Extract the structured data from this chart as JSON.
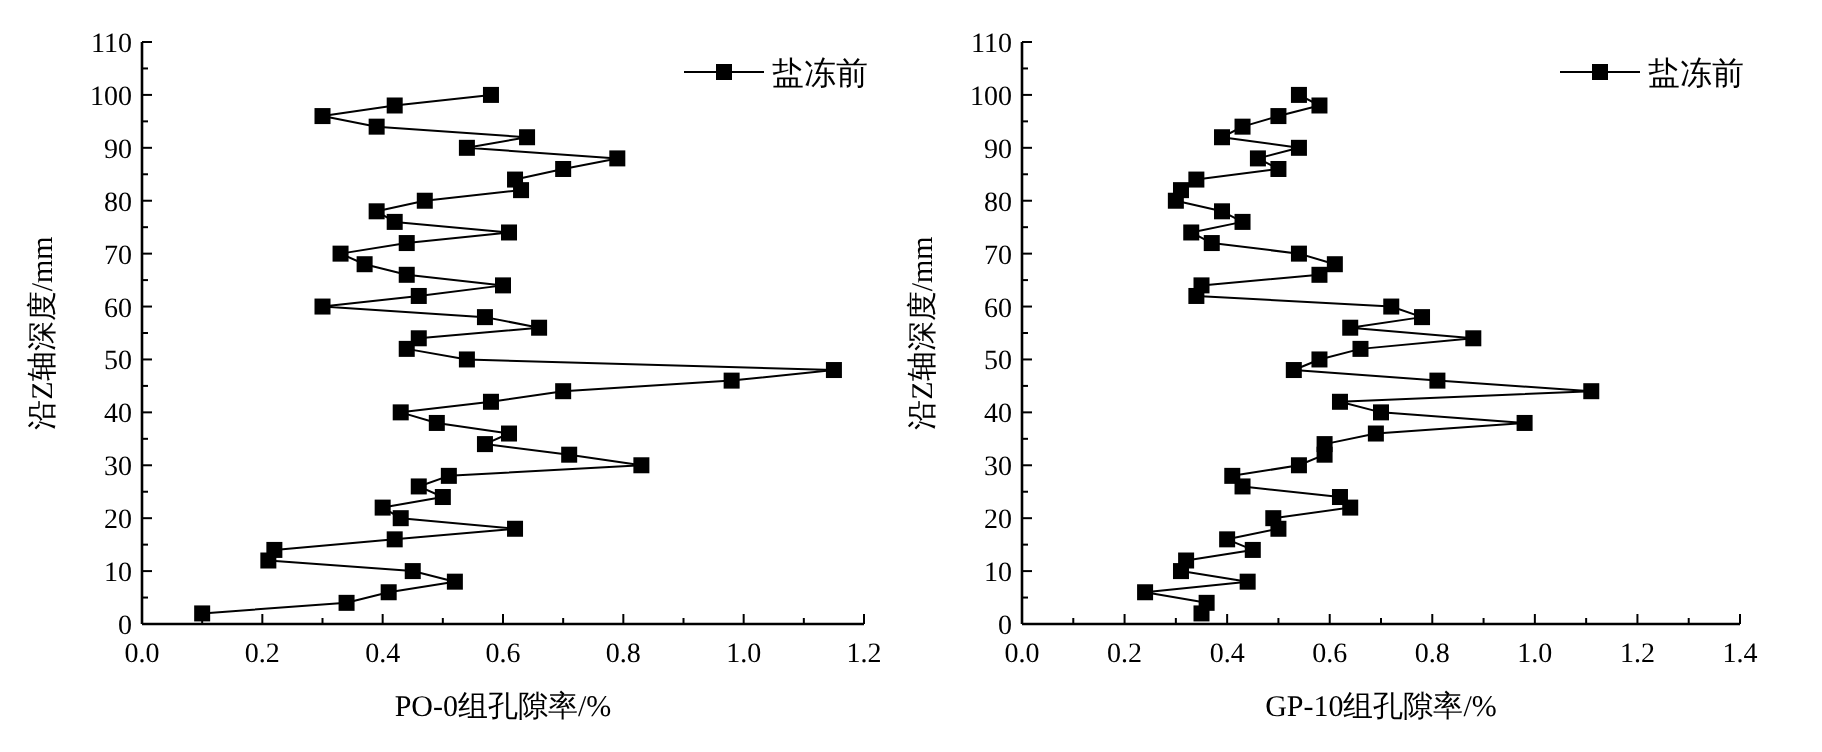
{
  "chart_data": [
    {
      "type": "line",
      "xlabel": "PO-0组孔隙率/%",
      "ylabel": "沿Z轴深度/mm",
      "legend": "top right",
      "marker": "square",
      "grid": false,
      "line_style": "solid",
      "xlim": [
        0,
        1.2
      ],
      "ylim": [
        0,
        110
      ],
      "xticks": [
        {
          "value": 0,
          "label": "0.0"
        },
        {
          "value": 0.1,
          "label": null
        },
        {
          "value": 0.2,
          "label": "0.2"
        },
        {
          "value": 0.3,
          "label": null
        },
        {
          "value": 0.4,
          "label": "0.4"
        },
        {
          "value": 0.5,
          "label": null
        },
        {
          "value": 0.6,
          "label": "0.6"
        },
        {
          "value": 0.7,
          "label": null
        },
        {
          "value": 0.8,
          "label": "0.8"
        },
        {
          "value": 0.9,
          "label": null
        },
        {
          "value": 1,
          "label": "1.0"
        },
        {
          "value": 1.1,
          "label": null
        },
        {
          "value": 1.2,
          "label": "1.2"
        }
      ],
      "yticks": [
        0,
        {
          "value": 5,
          "label": null
        },
        10,
        {
          "value": 15,
          "label": null
        },
        20,
        {
          "value": 25,
          "label": null
        },
        30,
        {
          "value": 35,
          "label": null
        },
        40,
        {
          "value": 45,
          "label": null
        },
        50,
        {
          "value": 55,
          "label": null
        },
        60,
        {
          "value": 65,
          "label": null
        },
        70,
        {
          "value": 75,
          "label": null
        },
        80,
        {
          "value": 85,
          "label": null
        },
        90,
        {
          "value": 95,
          "label": null
        },
        100,
        {
          "value": 105,
          "label": null
        },
        110
      ],
      "series": [
        {
          "name": "盐冻前",
          "color": "#000000",
          "x": [
            0.58,
            0.42,
            0.3,
            0.39,
            0.64,
            0.54,
            0.79,
            0.7,
            0.62,
            0.63,
            0.47,
            0.39,
            0.42,
            0.61,
            0.44,
            0.33,
            0.37,
            0.44,
            0.6,
            0.46,
            0.3,
            0.57,
            0.66,
            0.46,
            0.44,
            0.54,
            1.15,
            0.98,
            0.7,
            0.58,
            0.43,
            0.49,
            0.61,
            0.57,
            0.71,
            0.83,
            0.51,
            0.46,
            0.5,
            0.4,
            0.43,
            0.62,
            0.42,
            0.22,
            0.21,
            0.45,
            0.52,
            0.41,
            0.34,
            0.1
          ],
          "values": [
            100,
            98,
            96,
            94,
            92,
            90,
            88,
            86,
            84,
            82,
            80,
            78,
            76,
            74,
            72,
            70,
            68,
            66,
            64,
            62,
            60,
            58,
            56,
            54,
            52,
            50,
            48,
            46,
            44,
            42,
            40,
            38,
            36,
            34,
            32,
            30,
            28,
            26,
            24,
            22,
            20,
            18,
            16,
            14,
            12,
            10,
            8,
            6,
            4,
            2
          ]
        }
      ]
    },
    {
      "type": "line",
      "xlabel": "GP-10组孔隙率/%",
      "ylabel": "沿Z轴深度/mm",
      "legend": "top right",
      "marker": "square",
      "grid": false,
      "line_style": "solid",
      "xlim": [
        0,
        1.4
      ],
      "ylim": [
        0,
        110
      ],
      "xticks": [
        {
          "value": 0,
          "label": "0.0"
        },
        {
          "value": 0.1,
          "label": null
        },
        {
          "value": 0.2,
          "label": "0.2"
        },
        {
          "value": 0.3,
          "label": null
        },
        {
          "value": 0.4,
          "label": "0.4"
        },
        {
          "value": 0.5,
          "label": null
        },
        {
          "value": 0.6,
          "label": "0.6"
        },
        {
          "value": 0.7,
          "label": null
        },
        {
          "value": 0.8,
          "label": "0.8"
        },
        {
          "value": 0.9,
          "label": null
        },
        {
          "value": 1,
          "label": "1.0"
        },
        {
          "value": 1.1,
          "label": null
        },
        {
          "value": 1.2,
          "label": "1.2"
        },
        {
          "value": 1.3,
          "label": null
        },
        {
          "value": 1.4,
          "label": "1.4"
        }
      ],
      "yticks": [
        0,
        {
          "value": 5,
          "label": null
        },
        10,
        {
          "value": 15,
          "label": null
        },
        20,
        {
          "value": 25,
          "label": null
        },
        30,
        {
          "value": 35,
          "label": null
        },
        40,
        {
          "value": 45,
          "label": null
        },
        50,
        {
          "value": 55,
          "label": null
        },
        60,
        {
          "value": 65,
          "label": null
        },
        70,
        {
          "value": 75,
          "label": null
        },
        80,
        {
          "value": 85,
          "label": null
        },
        90,
        {
          "value": 95,
          "label": null
        },
        100,
        {
          "value": 105,
          "label": null
        },
        110
      ],
      "series": [
        {
          "name": "盐冻前",
          "color": "#000000",
          "x": [
            0.54,
            0.58,
            0.5,
            0.43,
            0.39,
            0.54,
            0.46,
            0.5,
            0.34,
            0.31,
            0.3,
            0.39,
            0.43,
            0.33,
            0.37,
            0.54,
            0.61,
            0.58,
            0.35,
            0.34,
            0.72,
            0.78,
            0.64,
            0.88,
            0.66,
            0.58,
            0.53,
            0.81,
            1.11,
            0.62,
            0.7,
            0.98,
            0.69,
            0.59,
            0.59,
            0.54,
            0.41,
            0.43,
            0.62,
            0.64,
            0.49,
            0.5,
            0.4,
            0.45,
            0.32,
            0.31,
            0.44,
            0.24,
            0.36,
            0.35
          ],
          "values": [
            100,
            98,
            96,
            94,
            92,
            90,
            88,
            86,
            84,
            82,
            80,
            78,
            76,
            74,
            72,
            70,
            68,
            66,
            64,
            62,
            60,
            58,
            56,
            54,
            52,
            50,
            48,
            46,
            44,
            42,
            40,
            38,
            36,
            34,
            32,
            30,
            28,
            26,
            24,
            22,
            20,
            18,
            16,
            14,
            12,
            10,
            8,
            6,
            4,
            2
          ]
        }
      ]
    }
  ]
}
